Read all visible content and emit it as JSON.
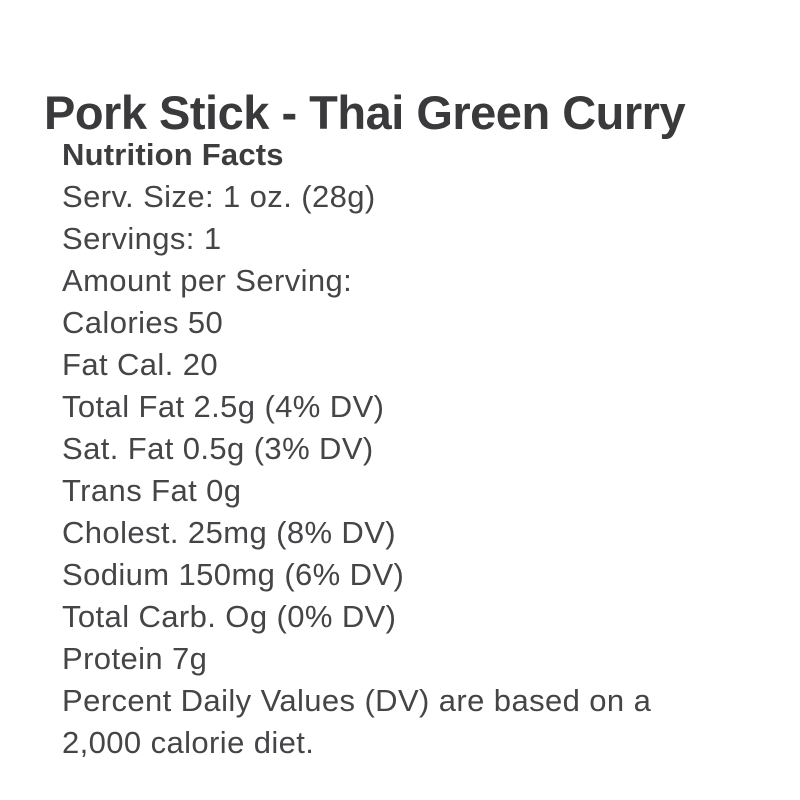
{
  "page": {
    "title": "Pork Stick - Thai Green Curry",
    "background_color": "#ffffff",
    "title_color": "#3a3a3c",
    "body_text_color": "#454548"
  },
  "nutrition": {
    "heading": "Nutrition Facts",
    "lines": [
      "Serv. Size: 1 oz. (28g)",
      "Servings: 1",
      "Amount per Serving:",
      "Calories 50",
      "Fat Cal. 20",
      "Total Fat 2.5g (4% DV)",
      "Sat. Fat 0.5g (3% DV)",
      "Trans Fat 0g",
      "Cholest. 25mg (8% DV)",
      "Sodium 150mg (6% DV)",
      "Total Carb. Og (0% DV)",
      "Protein 7g",
      "Percent Daily Values (DV) are based on a",
      "2,000 calorie diet."
    ]
  }
}
